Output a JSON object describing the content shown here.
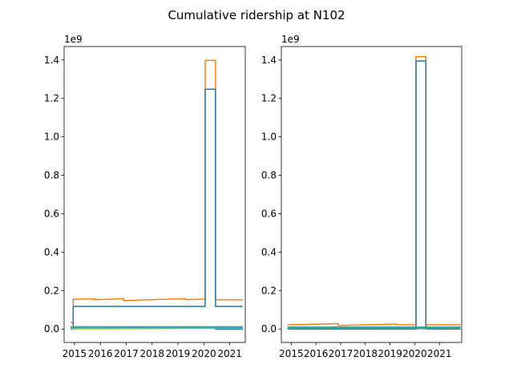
{
  "figure": {
    "title": "Cumulative ridership at N102"
  },
  "colors": {
    "axis": "#000000",
    "series_orange": "#ff7f0e",
    "series_blue": "#1f77b4",
    "series_green": "#2ca02c",
    "series_olive": "#bcbd22",
    "series_cyan": "#17becf",
    "series_gray": "#7f7f7f"
  },
  "chart_data": [
    {
      "type": "line",
      "title": "",
      "xlabel": "",
      "ylabel": "",
      "y_offset_label": "1e9",
      "xlim": [
        2014.6,
        2021.6
      ],
      "ylim": [
        -0.07,
        1.47
      ],
      "x_ticks": [
        2015,
        2016,
        2017,
        2018,
        2019,
        2020,
        2021
      ],
      "y_ticks": [
        0.0,
        0.2,
        0.4,
        0.6,
        0.8,
        1.0,
        1.2,
        1.4
      ],
      "grid": false,
      "series": [
        {
          "color": "#ff7f0e",
          "points": [
            [
              2014.85,
              0.035
            ],
            [
              2014.95,
              0.035
            ],
            [
              2014.95,
              0.155
            ],
            [
              2015.8,
              0.157
            ],
            [
              2015.8,
              0.152
            ],
            [
              2016.9,
              0.158
            ],
            [
              2016.9,
              0.148
            ],
            [
              2019.3,
              0.158
            ],
            [
              2019.3,
              0.153
            ],
            [
              2020.05,
              0.156
            ],
            [
              2020.05,
              1.398
            ],
            [
              2020.45,
              1.398
            ],
            [
              2020.45,
              0.152
            ],
            [
              2021.5,
              0.152
            ]
          ]
        },
        {
          "color": "#1f77b4",
          "points": [
            [
              2014.85,
              0.0
            ],
            [
              2014.95,
              0.0
            ],
            [
              2014.95,
              0.118
            ],
            [
              2020.05,
              0.118
            ],
            [
              2020.05,
              1.248
            ],
            [
              2020.45,
              1.248
            ],
            [
              2020.45,
              0.118
            ],
            [
              2021.5,
              0.118
            ]
          ]
        },
        {
          "color": "#1f77b4",
          "points": [
            [
              2014.85,
              0.004
            ],
            [
              2020.45,
              0.004
            ],
            [
              2020.45,
              0.0
            ],
            [
              2021.5,
              0.0
            ]
          ]
        },
        {
          "color": "#2ca02c",
          "points": [
            [
              2014.85,
              0.008
            ],
            [
              2021.5,
              0.009
            ]
          ]
        },
        {
          "color": "#bcbd22",
          "points": [
            [
              2014.85,
              0.001
            ],
            [
              2021.5,
              0.004
            ]
          ]
        },
        {
          "color": "#17becf",
          "points": [
            [
              2014.85,
              0.006
            ],
            [
              2021.5,
              0.006
            ]
          ]
        },
        {
          "color": "#7f7f7f",
          "points": [
            [
              2014.85,
              0.012
            ],
            [
              2021.5,
              0.012
            ]
          ]
        }
      ]
    },
    {
      "type": "line",
      "title": "",
      "xlabel": "",
      "ylabel": "",
      "y_offset_label": "1e9",
      "xlim": [
        2014.6,
        2021.9
      ],
      "ylim": [
        -0.07,
        1.47
      ],
      "x_ticks": [
        2015,
        2016,
        2017,
        2018,
        2019,
        2020,
        2021
      ],
      "y_ticks": [
        0.0,
        0.2,
        0.4,
        0.6,
        0.8,
        1.0,
        1.2,
        1.4
      ],
      "grid": false,
      "series": [
        {
          "color": "#ff7f0e",
          "points": [
            [
              2014.85,
              0.022
            ],
            [
              2016.9,
              0.028
            ],
            [
              2016.9,
              0.018
            ],
            [
              2019.3,
              0.026
            ],
            [
              2019.3,
              0.022
            ],
            [
              2020.05,
              0.023
            ],
            [
              2020.05,
              1.418
            ],
            [
              2020.45,
              1.418
            ],
            [
              2020.45,
              0.022
            ],
            [
              2021.85,
              0.022
            ]
          ]
        },
        {
          "color": "#1f77b4",
          "points": [
            [
              2014.85,
              0.0
            ],
            [
              2020.05,
              0.0
            ],
            [
              2020.05,
              1.395
            ],
            [
              2020.45,
              1.395
            ],
            [
              2020.45,
              0.0
            ],
            [
              2021.85,
              0.0
            ]
          ]
        },
        {
          "color": "#2ca02c",
          "points": [
            [
              2014.85,
              0.01
            ],
            [
              2021.85,
              0.01
            ]
          ]
        },
        {
          "color": "#17becf",
          "points": [
            [
              2014.85,
              0.005
            ],
            [
              2021.85,
              0.005
            ]
          ]
        },
        {
          "color": "#7f7f7f",
          "points": [
            [
              2014.85,
              0.002
            ],
            [
              2021.85,
              0.002
            ]
          ]
        }
      ]
    }
  ]
}
